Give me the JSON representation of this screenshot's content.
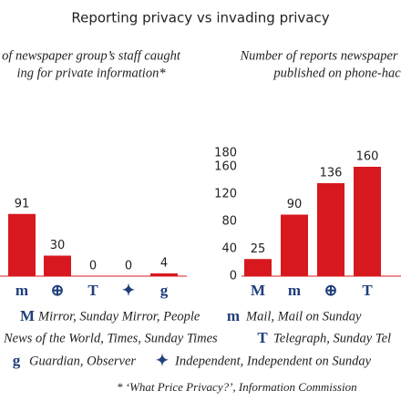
{
  "title": "Reporting privacy vs invading privacy",
  "chart_data": [
    {
      "type": "bar",
      "subtitle": [
        "of newspaper group’s staff caught",
        "ing for private information*"
      ],
      "categories": [
        "m",
        "⊕",
        "T",
        "✦",
        "g"
      ],
      "values": [
        91,
        30,
        0,
        0,
        4
      ],
      "color": "#d7191f",
      "ylim": [
        0,
        180
      ]
    },
    {
      "type": "bar",
      "subtitle": [
        "Number of reports newspaper",
        "published on phone-hac"
      ],
      "categories": [
        "M",
        "m",
        "⊕",
        "T"
      ],
      "values": [
        25,
        90,
        136,
        160
      ],
      "color": "#d7191f",
      "ylim": [
        0,
        180
      ],
      "yticks": [
        0,
        40,
        80,
        120,
        160,
        180
      ]
    }
  ],
  "legend": [
    {
      "icon": "M",
      "text": "Mirror, Sunday Mirror, People"
    },
    {
      "icon": "m",
      "text": "Mail, Mail on Sunday"
    },
    {
      "text": "News of the World, Times, Sunday Times"
    },
    {
      "icon": "T",
      "text": "Telegraph, Sunday Tel"
    },
    {
      "icon": "g",
      "text": "Guardian, Observer"
    },
    {
      "icon": "✦",
      "text": "Independent, Independent on Sunday"
    }
  ],
  "footnote": "* ‘What Price Privacy?’, Information Commission"
}
